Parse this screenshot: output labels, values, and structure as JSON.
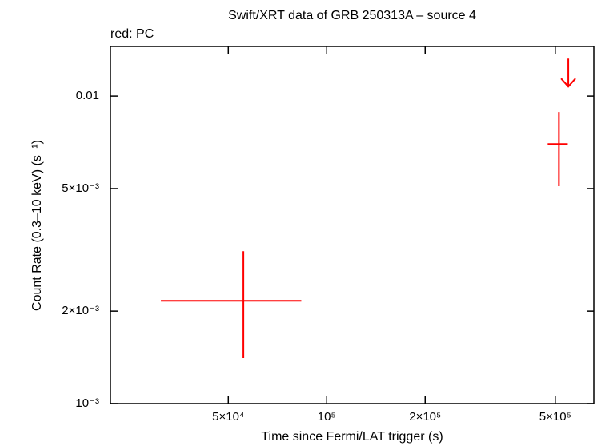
{
  "chart_data": {
    "type": "scatter",
    "title": "Swift/XRT data of GRB 250313A – source 4",
    "subtitle": "red: PC",
    "x_label": "Time since Fermi/LAT trigger (s)",
    "y_label": "Count Rate (0.3–10 keV) (s⁻¹)",
    "log_x": true,
    "log_y": true,
    "xlim": [
      21800,
      656000
    ],
    "ylim": [
      0.001,
      0.0145
    ],
    "xticks": [
      {
        "value": 50000,
        "label": "5×10⁴"
      },
      {
        "value": 100000,
        "label": "10⁵"
      },
      {
        "value": 200000,
        "label": "2×10⁵"
      },
      {
        "value": 500000,
        "label": "5×10⁵"
      }
    ],
    "yticks": [
      {
        "value": 0.001,
        "label": "10⁻³"
      },
      {
        "value": 0.002,
        "label": "2×10⁻³"
      },
      {
        "value": 0.005,
        "label": "5×10⁻³"
      },
      0.01
    ],
    "series": [
      {
        "color": "#ff0000",
        "x": [
          55600,
          513000
        ],
        "x_lo": [
          31100,
          474000
        ],
        "x_hi": [
          83600,
          546000
        ],
        "y": [
          0.00216,
          0.00698
        ],
        "y_lo": [
          0.001406,
          0.00509
        ],
        "y_hi": [
          0.00313,
          0.00887
        ]
      }
    ],
    "upper_limits": {
      "color": "#ff0000",
      "x": [
        548000
      ],
      "y": [
        0.01324
      ]
    }
  }
}
